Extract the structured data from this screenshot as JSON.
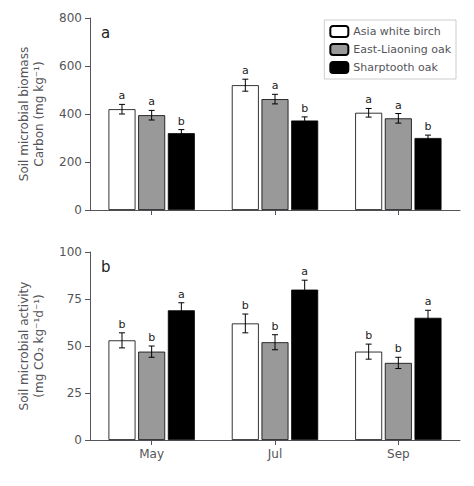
{
  "chart_data": [
    {
      "type": "bar",
      "title": "a",
      "categories": [
        null,
        null,
        null
      ],
      "ylabel": "Soil microbial biomass\nCarbon (mg kg⁻¹)",
      "ylim": [
        0,
        800
      ],
      "yticks": [
        0,
        200,
        400,
        600,
        800
      ],
      "grid": false,
      "legend": "upper right",
      "tick_labels": "y",
      "series": [
        {
          "name": "Asia white birch",
          "color": "white",
          "values": [
            420,
            520,
            405
          ],
          "errors": [
            20,
            25,
            18
          ],
          "sig_labels": [
            "a",
            "a",
            "a"
          ]
        },
        {
          "name": "East-Liaoning oak",
          "color": "#999999",
          "values": [
            395,
            462,
            382
          ],
          "errors": [
            20,
            20,
            20
          ],
          "sig_labels": [
            "a",
            "a",
            "a"
          ]
        },
        {
          "name": "Sharptooth oak",
          "color": "black",
          "values": [
            320,
            373,
            300
          ],
          "errors": [
            15,
            15,
            12
          ],
          "sig_labels": [
            "b",
            "b",
            "b"
          ]
        }
      ]
    },
    {
      "type": "bar",
      "title": "b",
      "categories": [
        "May",
        "Jul",
        "Sep"
      ],
      "ylabel": "Soil microbial activity\n(mg CO₂ kg⁻¹d⁻¹)",
      "ylim": [
        0,
        100
      ],
      "yticks": [
        0,
        25,
        50,
        75,
        100
      ],
      "grid": false,
      "series": [
        {
          "name": "Asia white birch",
          "color": "white",
          "values": [
            53,
            62,
            47
          ],
          "errors": [
            4,
            5,
            4
          ],
          "sig_labels": [
            "b",
            "b",
            "b"
          ]
        },
        {
          "name": "East-Liaoning oak",
          "color": "#999999",
          "values": [
            47,
            52,
            41
          ],
          "errors": [
            3,
            4,
            3
          ],
          "sig_labels": [
            "b",
            "b",
            "b"
          ]
        },
        {
          "name": "Sharptooth oak",
          "color": "black",
          "values": [
            69,
            80,
            65
          ],
          "errors": [
            4,
            5,
            4
          ],
          "sig_labels": [
            "a",
            "a",
            "a"
          ]
        }
      ]
    }
  ]
}
